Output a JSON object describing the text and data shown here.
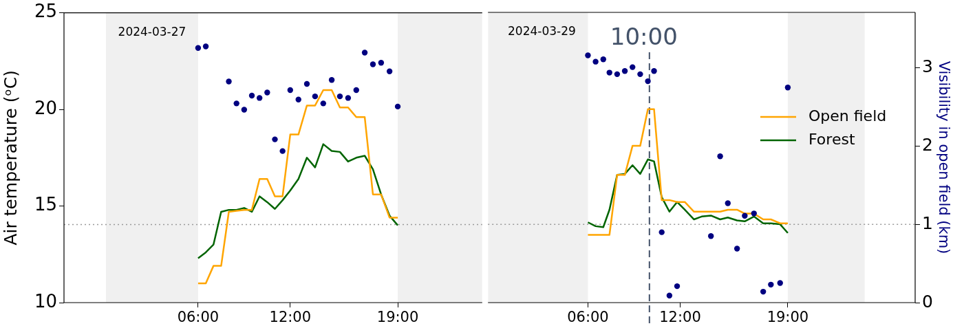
{
  "chart_data": [
    {
      "type": "line",
      "xlim": [
        "2024-03-26T21:16",
        "2024-03-28T00:30"
      ],
      "xticks": [
        {
          "value": "2024-03-27T06:00",
          "label": "06:00"
        },
        {
          "value": "2024-03-27T12:00",
          "label": "12:00"
        },
        {
          "value": "2024-03-27T19:00",
          "label": "19:00"
        }
      ],
      "ylabel": "Air temperature (ᵒC)",
      "ylim": [
        10,
        25
      ],
      "yticks": [
        10,
        15,
        20,
        25
      ],
      "y2lim": [
        0,
        3.71
      ],
      "grid": false,
      "marker": "none",
      "line_style": "solid",
      "series": [
        {
          "color": "#ffa500",
          "x": [
            "2024-03-27T06:00",
            "2024-03-27T06:30",
            "2024-03-27T07:00",
            "2024-03-27T07:30",
            "2024-03-27T08:00",
            "2024-03-27T08:30",
            "2024-03-27T09:00",
            "2024-03-27T09:30",
            "2024-03-27T10:00",
            "2024-03-27T10:30",
            "2024-03-27T11:00",
            "2024-03-27T11:30",
            "2024-03-27T12:00",
            "2024-03-27T12:32",
            "2024-03-27T13:05",
            "2024-03-27T13:37",
            "2024-03-27T14:09",
            "2024-03-27T14:42",
            "2024-03-27T15:14",
            "2024-03-27T15:46",
            "2024-03-27T16:18",
            "2024-03-27T16:51",
            "2024-03-27T17:23",
            "2024-03-27T17:55",
            "2024-03-27T18:28",
            "2024-03-27T19:00"
          ],
          "values": [
            11.0,
            11.0,
            11.9,
            11.9,
            14.7,
            14.75,
            14.8,
            14.8,
            16.4,
            16.4,
            15.5,
            15.5,
            18.7,
            18.7,
            20.2,
            20.2,
            21.0,
            21.0,
            20.1,
            20.1,
            19.6,
            19.6,
            15.6,
            15.6,
            14.4,
            14.4
          ]
        },
        {
          "color": "#006400",
          "x": [
            "2024-03-27T06:00",
            "2024-03-27T06:30",
            "2024-03-27T07:00",
            "2024-03-27T07:30",
            "2024-03-27T08:00",
            "2024-03-27T08:30",
            "2024-03-27T09:00",
            "2024-03-27T09:30",
            "2024-03-27T10:00",
            "2024-03-27T10:30",
            "2024-03-27T11:00",
            "2024-03-27T11:30",
            "2024-03-27T12:00",
            "2024-03-27T12:32",
            "2024-03-27T13:05",
            "2024-03-27T13:37",
            "2024-03-27T14:09",
            "2024-03-27T14:42",
            "2024-03-27T15:14",
            "2024-03-27T15:46",
            "2024-03-27T16:18",
            "2024-03-27T16:51",
            "2024-03-27T17:23",
            "2024-03-27T17:55",
            "2024-03-27T18:28",
            "2024-03-27T19:00"
          ],
          "values": [
            12.3,
            12.6,
            13.0,
            14.7,
            14.8,
            14.8,
            14.9,
            14.7,
            15.5,
            15.2,
            14.85,
            15.3,
            15.8,
            16.4,
            17.5,
            17.0,
            18.2,
            17.85,
            17.8,
            17.3,
            17.5,
            17.6,
            16.9,
            15.6,
            14.5,
            14.0
          ]
        },
        {
          "type": "scatter",
          "axis": "y2",
          "marker": "circle",
          "color": "#000080",
          "x": [
            "2024-03-27T06:00",
            "2024-03-27T06:30",
            "2024-03-27T08:00",
            "2024-03-27T08:30",
            "2024-03-27T09:00",
            "2024-03-27T09:30",
            "2024-03-27T10:00",
            "2024-03-27T10:30",
            "2024-03-27T11:00",
            "2024-03-27T11:30",
            "2024-03-27T12:00",
            "2024-03-27T12:32",
            "2024-03-27T13:05",
            "2024-03-27T13:37",
            "2024-03-27T14:09",
            "2024-03-27T14:42",
            "2024-03-27T15:14",
            "2024-03-27T15:46",
            "2024-03-27T16:18",
            "2024-03-27T16:51",
            "2024-03-27T17:23",
            "2024-03-27T17:55",
            "2024-03-27T18:28",
            "2024-03-27T19:00"
          ],
          "values": [
            3.26,
            3.28,
            2.83,
            2.55,
            2.47,
            2.65,
            2.62,
            2.69,
            2.09,
            1.94,
            2.72,
            2.6,
            2.8,
            2.64,
            2.55,
            2.85,
            2.64,
            2.62,
            2.72,
            3.2,
            3.05,
            3.07,
            2.96,
            2.51
          ]
        }
      ],
      "bands": [
        {
          "axis": "x",
          "from": "2024-03-27T00:00",
          "to": "2024-03-27T06:00",
          "color": "#f0f0f0"
        },
        {
          "axis": "x",
          "from": "2024-03-27T19:00",
          "to": "2024-03-28T00:30",
          "color": "#f0f0f0"
        }
      ],
      "ref_lines": [
        {
          "axis": "y2",
          "value": 1,
          "color": "#999999",
          "line_style": "dotted"
        }
      ],
      "annotations": [
        "2024-03-27"
      ]
    },
    {
      "type": "line",
      "xlim": [
        "2024-03-28T23:30",
        "2024-03-30T03:17"
      ],
      "xticks": [
        {
          "value": "2024-03-29T06:00",
          "label": "06:00"
        },
        {
          "value": "2024-03-29T12:00",
          "label": "12:00"
        },
        {
          "value": "2024-03-29T19:00",
          "label": "19:00"
        }
      ],
      "y2label": "Visibility in open field (km)",
      "ylim": [
        10,
        25
      ],
      "y2lim": [
        0,
        3.71
      ],
      "y2ticks": [
        0,
        1,
        2,
        3
      ],
      "grid": false,
      "legend": "right",
      "marker": "none",
      "line_style": "solid",
      "series": [
        {
          "name": "Open field",
          "color": "#ffa500",
          "x": [
            "2024-03-29T06:00",
            "2024-03-29T06:30",
            "2024-03-29T07:00",
            "2024-03-29T07:24",
            "2024-03-29T07:54",
            "2024-03-29T08:24",
            "2024-03-29T08:54",
            "2024-03-29T09:24",
            "2024-03-29T09:54",
            "2024-03-29T10:18",
            "2024-03-29T10:48",
            "2024-03-29T11:18",
            "2024-03-29T11:48",
            "2024-03-29T12:18",
            "2024-03-29T12:54",
            "2024-03-29T13:24",
            "2024-03-29T14:00",
            "2024-03-29T14:36",
            "2024-03-29T15:06",
            "2024-03-29T15:42",
            "2024-03-29T16:12",
            "2024-03-29T16:48",
            "2024-03-29T17:24",
            "2024-03-29T17:54",
            "2024-03-29T18:30",
            "2024-03-29T19:00"
          ],
          "values": [
            13.5,
            13.5,
            13.5,
            13.5,
            16.6,
            16.6,
            18.1,
            18.1,
            20.0,
            20.0,
            15.3,
            15.3,
            15.2,
            15.2,
            14.7,
            14.7,
            14.7,
            14.7,
            14.8,
            14.8,
            14.6,
            14.6,
            14.3,
            14.3,
            14.1,
            14.1
          ]
        },
        {
          "name": "Forest",
          "color": "#006400",
          "x": [
            "2024-03-29T06:00",
            "2024-03-29T06:30",
            "2024-03-29T07:00",
            "2024-03-29T07:24",
            "2024-03-29T07:54",
            "2024-03-29T08:24",
            "2024-03-29T08:54",
            "2024-03-29T09:24",
            "2024-03-29T09:54",
            "2024-03-29T10:18",
            "2024-03-29T10:48",
            "2024-03-29T11:18",
            "2024-03-29T11:48",
            "2024-03-29T12:18",
            "2024-03-29T12:54",
            "2024-03-29T13:24",
            "2024-03-29T14:00",
            "2024-03-29T14:36",
            "2024-03-29T15:06",
            "2024-03-29T15:42",
            "2024-03-29T16:12",
            "2024-03-29T16:48",
            "2024-03-29T17:24",
            "2024-03-29T17:54",
            "2024-03-29T18:30",
            "2024-03-29T19:00"
          ],
          "values": [
            14.15,
            13.95,
            13.9,
            14.8,
            16.6,
            16.65,
            17.1,
            16.65,
            17.4,
            17.3,
            15.45,
            14.7,
            15.2,
            14.8,
            14.3,
            14.45,
            14.5,
            14.3,
            14.4,
            14.25,
            14.2,
            14.45,
            14.1,
            14.1,
            14.05,
            13.6
          ]
        },
        {
          "type": "scatter",
          "axis": "y2",
          "marker": "circle",
          "color": "#000080",
          "x": [
            "2024-03-29T06:00",
            "2024-03-29T06:30",
            "2024-03-29T07:00",
            "2024-03-29T07:24",
            "2024-03-29T07:54",
            "2024-03-29T08:24",
            "2024-03-29T08:54",
            "2024-03-29T09:24",
            "2024-03-29T09:54",
            "2024-03-29T10:18",
            "2024-03-29T10:48",
            "2024-03-29T11:18",
            "2024-03-29T11:48",
            "2024-03-29T14:00",
            "2024-03-29T14:36",
            "2024-03-29T15:06",
            "2024-03-29T15:42",
            "2024-03-29T16:12",
            "2024-03-29T16:48",
            "2024-03-29T17:24",
            "2024-03-29T17:54",
            "2024-03-29T18:30",
            "2024-03-29T19:00"
          ],
          "values": [
            3.16,
            3.08,
            3.11,
            2.94,
            2.92,
            2.96,
            3.01,
            2.92,
            2.83,
            2.96,
            0.9,
            0.09,
            0.21,
            0.85,
            1.87,
            1.27,
            0.69,
            1.11,
            1.14,
            0.14,
            0.23,
            0.25,
            2.75
          ]
        }
      ],
      "bands": [
        {
          "axis": "x",
          "from": "2024-03-28T23:30",
          "to": "2024-03-29T06:00",
          "color": "#f0f0f0"
        },
        {
          "axis": "x",
          "from": "2024-03-29T19:00",
          "to": "2024-03-30T00:00",
          "color": "#f0f0f0"
        }
      ],
      "ref_lines": [
        {
          "axis": "y2",
          "value": 1,
          "color": "#999999",
          "line_style": "dotted"
        },
        {
          "axis": "x",
          "value": "2024-03-29T10:00",
          "label": "10:00",
          "color": "#44536a",
          "line_style": "dashed"
        }
      ],
      "annotations": [
        "2024-03-29"
      ]
    }
  ]
}
